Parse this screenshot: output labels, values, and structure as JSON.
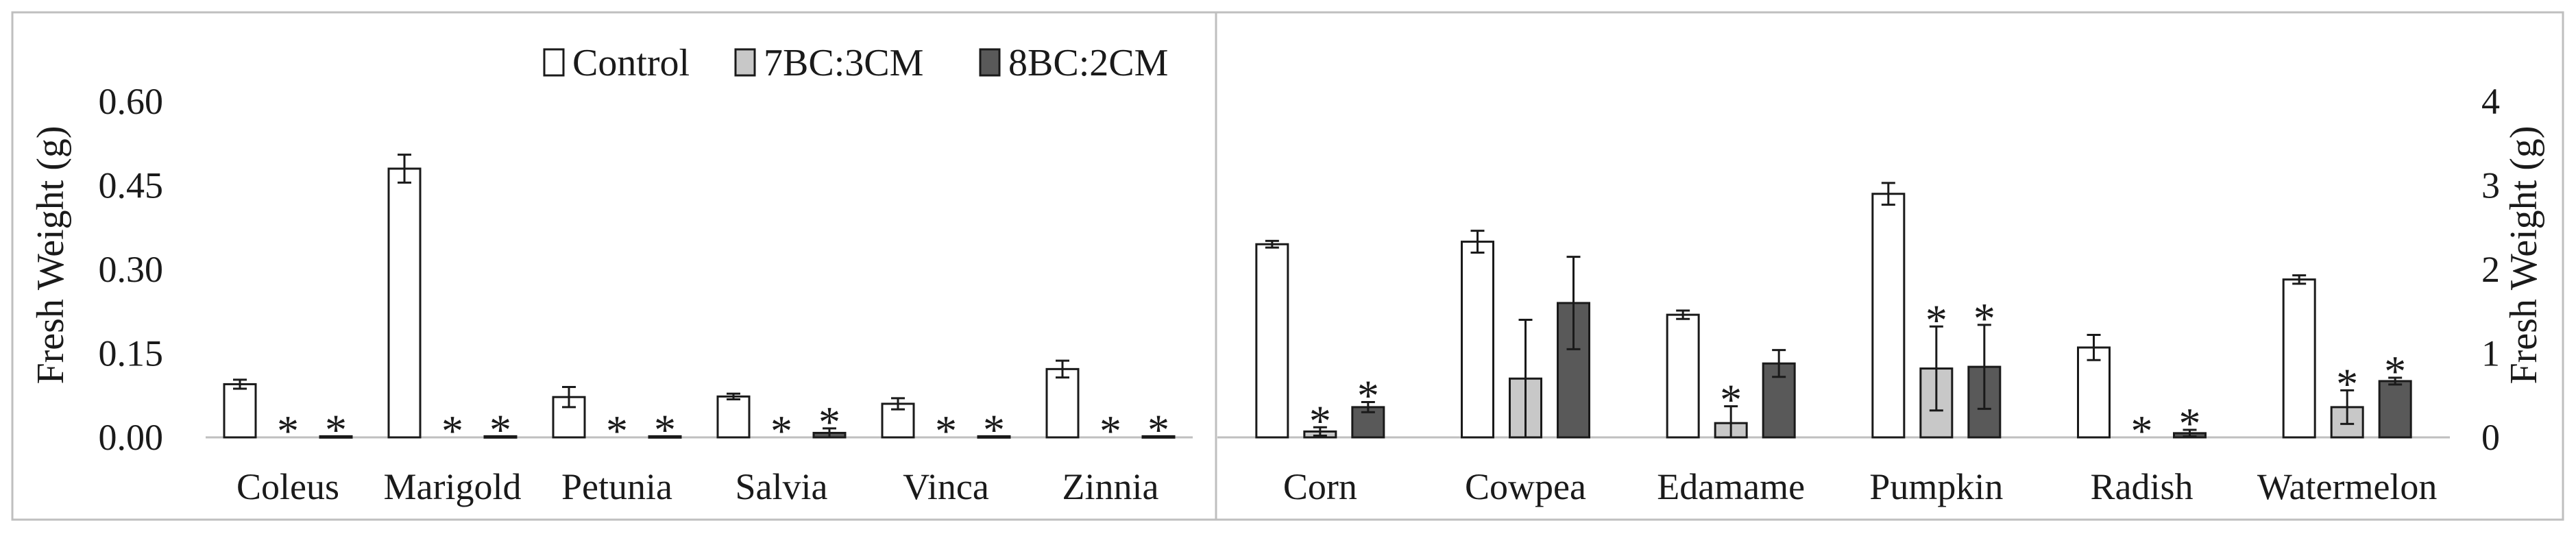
{
  "chart_data": [
    {
      "type": "bar",
      "panel": "left",
      "categories": [
        "Coleus",
        "Marigold",
        "Petunia",
        "Salvia",
        "Vinca",
        "Zinnia"
      ],
      "ylabel": "Fresh Weight (g)",
      "ylim": [
        0,
        0.6
      ],
      "yticks": [
        "0.00",
        "0.15",
        "0.30",
        "0.45",
        "0.60"
      ],
      "grid": false,
      "legend": "top",
      "series": [
        {
          "name": "Control",
          "color": "#ffffff",
          "values": [
            0.095,
            0.48,
            0.072,
            0.073,
            0.06,
            0.122
          ],
          "errors": [
            0.008,
            0.025,
            0.018,
            0.005,
            0.01,
            0.015
          ]
        },
        {
          "name": "7BC:3CM",
          "color": "#c8c8c8",
          "values": [
            0,
            0,
            0,
            0,
            0,
            0
          ],
          "errors": [
            0,
            0,
            0,
            0,
            0,
            0
          ]
        },
        {
          "name": "8BC:2CM",
          "color": "#595959",
          "values": [
            0.002,
            0.002,
            0.002,
            0.008,
            0.002,
            0.002
          ],
          "errors": [
            0,
            0,
            0,
            0.008,
            0,
            0
          ]
        }
      ],
      "significance": [
        [
          "",
          "*",
          "*"
        ],
        [
          "",
          "*",
          "*"
        ],
        [
          "",
          "*",
          "*"
        ],
        [
          "",
          "*",
          "*"
        ],
        [
          "",
          "*",
          "*"
        ],
        [
          "",
          "*",
          "*"
        ]
      ]
    },
    {
      "type": "bar",
      "panel": "right",
      "categories": [
        "Corn",
        "Cowpea",
        "Edamame",
        "Pumpkin",
        "Radish",
        "Watermelon"
      ],
      "ylabel": "Fresh Weight (g)",
      "ylim": [
        0,
        4
      ],
      "yticks": [
        "0",
        "1",
        "2",
        "3",
        "4"
      ],
      "grid": false,
      "series": [
        {
          "name": "Control",
          "color": "#ffffff",
          "values": [
            2.3,
            2.33,
            1.46,
            2.9,
            1.07,
            1.88
          ],
          "errors": [
            0.04,
            0.13,
            0.05,
            0.13,
            0.15,
            0.05
          ]
        },
        {
          "name": "7BC:3CM",
          "color": "#c8c8c8",
          "values": [
            0.07,
            0.7,
            0.17,
            0.82,
            0,
            0.36
          ],
          "errors": [
            0.05,
            0.7,
            0.2,
            0.5,
            0,
            0.2
          ]
        },
        {
          "name": "8BC:2CM",
          "color": "#595959",
          "values": [
            0.36,
            1.6,
            0.88,
            0.84,
            0.05,
            0.67
          ],
          "errors": [
            0.06,
            0.55,
            0.16,
            0.5,
            0.04,
            0.04
          ]
        }
      ],
      "significance": [
        [
          "",
          "*",
          "*"
        ],
        [
          "",
          "",
          ""
        ],
        [
          "",
          "*",
          ""
        ],
        [
          "",
          "*",
          "*"
        ],
        [
          "",
          "*",
          "*"
        ],
        [
          "",
          "*",
          "*"
        ]
      ]
    }
  ]
}
